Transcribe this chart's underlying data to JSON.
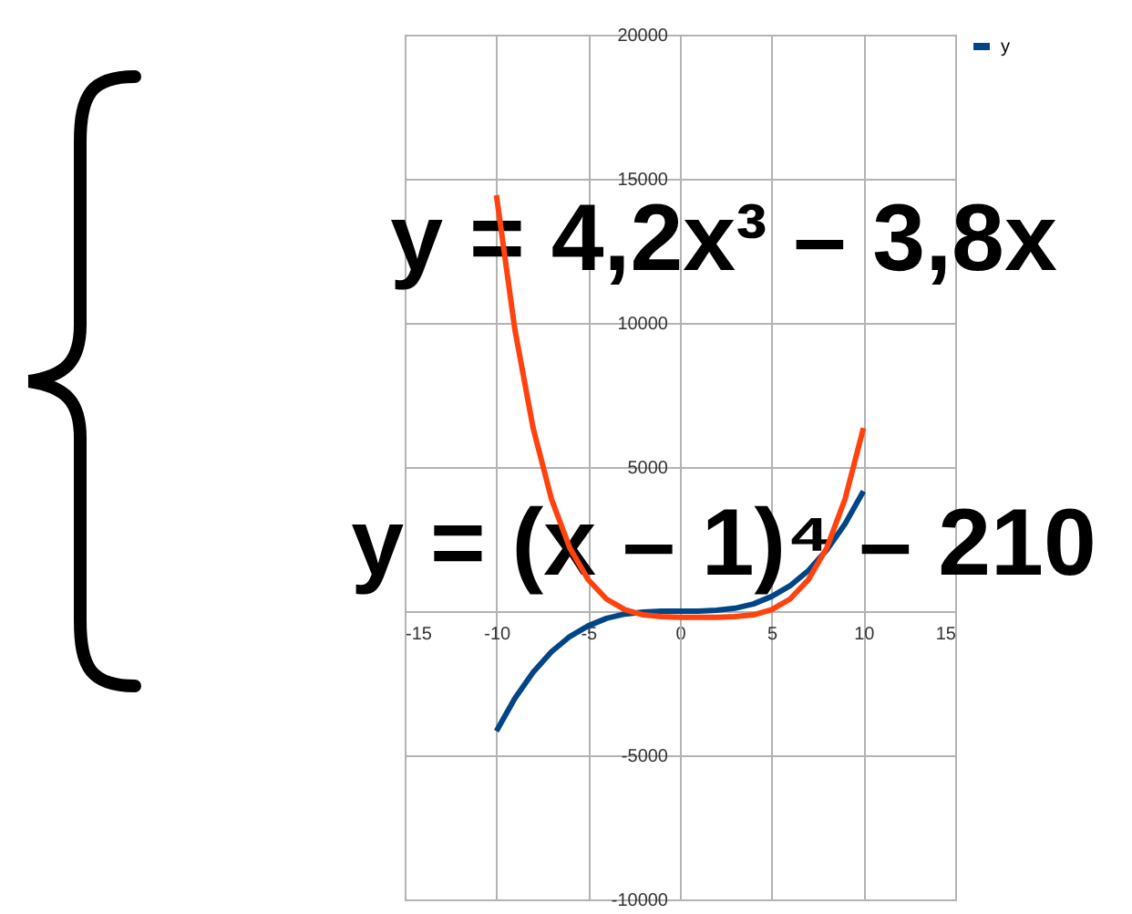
{
  "chart_data": {
    "type": "line",
    "x": [
      -10,
      -9,
      -8,
      -7,
      -6,
      -5,
      -4,
      -3,
      -2,
      -1,
      0,
      1,
      2,
      3,
      4,
      5,
      6,
      7,
      8,
      9,
      10
    ],
    "series": [
      {
        "name": "y",
        "color": "#004586",
        "values": [
          -4160,
          -3030,
          -2120,
          -1410,
          -880,
          -510,
          -250,
          -100,
          -30,
          0,
          0,
          0,
          30,
          100,
          250,
          510,
          880,
          1410,
          2120,
          3030,
          4160
        ]
      },
      {
        "color": "#ff420e",
        "values": [
          14430,
          9790,
          6350,
          3890,
          2190,
          1090,
          420,
          50,
          -130,
          -190,
          -210,
          -210,
          -210,
          -190,
          -130,
          50,
          420,
          1090,
          2190,
          3890,
          6350
        ]
      }
    ],
    "xlim": [
      -15,
      15
    ],
    "xticks": [
      -15,
      -10,
      -5,
      0,
      5,
      10,
      15
    ],
    "ylim": [
      -10000,
      20000
    ],
    "yticks": [
      -10000,
      -5000,
      {
        "value": 0,
        "label": null
      },
      5000,
      10000,
      15000,
      20000
    ],
    "grid": true,
    "legend": "right",
    "marker": "none",
    "line_style": "solid",
    "annotations": [
      "y = 4,2x³ – 3,8x",
      "y = (x – 1)⁴ – 210"
    ]
  }
}
